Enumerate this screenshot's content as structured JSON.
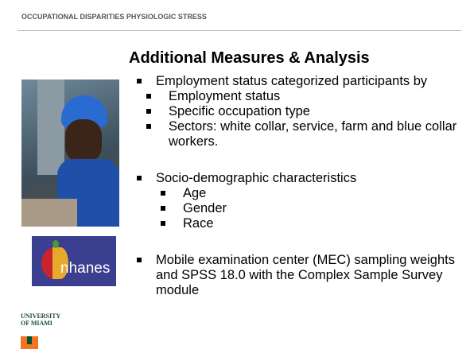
{
  "header": {
    "title": "OCCUPATIONAL DISPARITIES PHYSIOLOGIC STRESS"
  },
  "slide": {
    "title": "Additional Measures & Analysis",
    "bullets": [
      {
        "text": "Employment status categorized participants by",
        "sub": [
          "Employment status",
          "Specific occupation type",
          "Sectors: white collar, service, farm and blue collar workers."
        ]
      },
      {
        "text": "Socio-demographic characteristics",
        "sub": [
          "Age",
          "Gender",
          "Race"
        ]
      },
      {
        "text": "Mobile examination center (MEC) sampling weights and SPSS 18.0 with the Complex Sample Survey module"
      }
    ]
  },
  "logos": {
    "nhanes": "nhanes",
    "university": [
      "UNIVERSITY",
      "OF MIAMI"
    ]
  }
}
